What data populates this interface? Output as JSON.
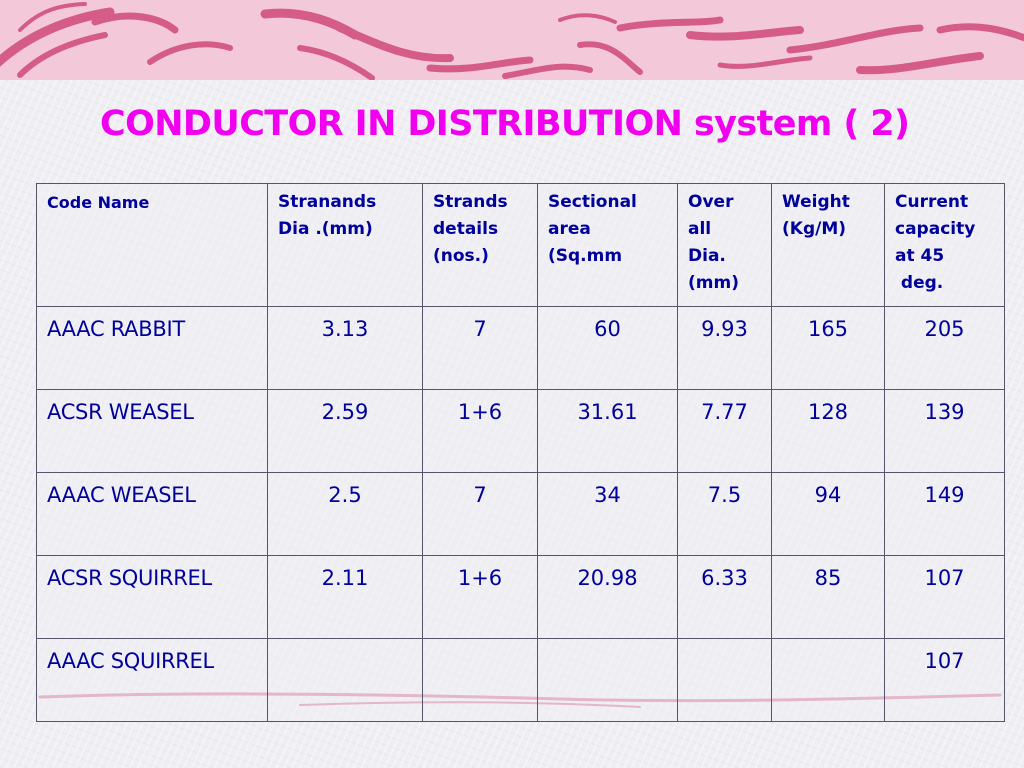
{
  "slide": {
    "title": "CONDUCTOR IN DISTRIBUTION system ( 2)",
    "title_color": "#f000ee",
    "text_color": "#00009a",
    "accent_band_color": "#f3c9d9",
    "swirl_color": "#d45c86"
  },
  "table": {
    "headers": [
      {
        "lines": [
          "Code Name"
        ]
      },
      {
        "lines": [
          "Stranands",
          "Dia .(mm)"
        ]
      },
      {
        "lines": [
          "Strands",
          "details",
          "(nos.)"
        ]
      },
      {
        "lines": [
          "Sectional",
          "area",
          "(Sq.mm"
        ]
      },
      {
        "lines": [
          "Over",
          "all",
          "Dia.",
          "(mm)"
        ]
      },
      {
        "lines": [
          "Weight",
          "(Kg/M)"
        ]
      },
      {
        "lines": [
          "Current",
          "capacity",
          "at 45",
          " deg."
        ]
      }
    ],
    "rows": [
      {
        "cells": [
          "AAAC RABBIT",
          "3.13",
          "7",
          "60",
          "9.93",
          "165",
          "205"
        ]
      },
      {
        "cells": [
          "ACSR WEASEL",
          "2.59",
          "1+6",
          "31.61",
          "7.77",
          "128",
          "139"
        ]
      },
      {
        "cells": [
          "AAAC WEASEL",
          "2.5",
          "7",
          "34",
          "7.5",
          "94",
          "149"
        ]
      },
      {
        "cells": [
          "ACSR SQUIRREL",
          "2.11",
          "1+6",
          "20.98",
          "6.33",
          "85",
          "107"
        ]
      },
      {
        "cells": [
          "AAAC SQUIRREL",
          "",
          "",
          "",
          "",
          "",
          "107"
        ]
      }
    ]
  }
}
